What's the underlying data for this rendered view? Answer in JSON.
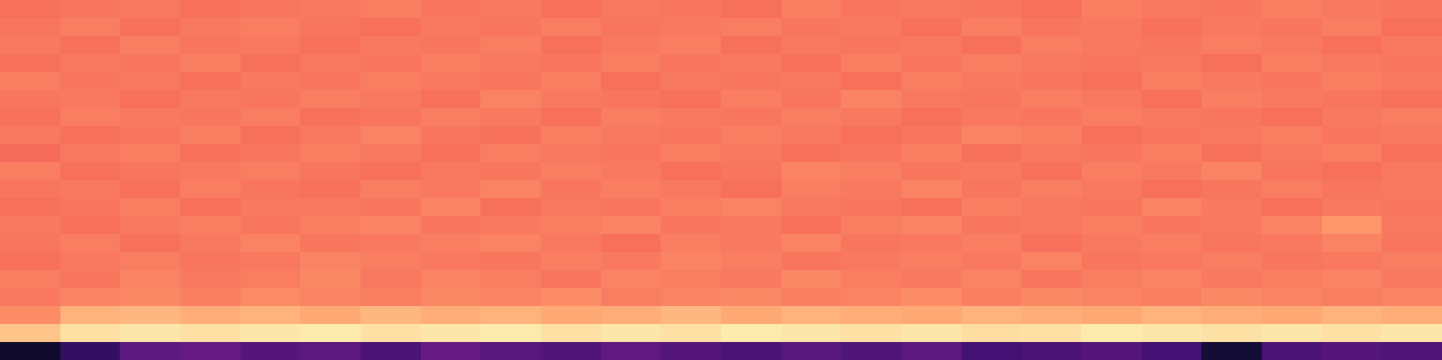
{
  "chart_data": {
    "type": "heatmap",
    "color": "magma",
    "tick_labels": false,
    "zlim": [
      0,
      100
    ],
    "cells": [
      [
        8,
        18,
        28,
        30,
        26,
        28,
        24,
        30,
        27,
        25,
        29,
        26,
        24,
        27,
        25,
        28,
        22,
        24,
        26,
        22,
        10,
        24,
        26,
        25
      ],
      [
        88,
        94,
        95,
        94,
        95,
        96,
        94,
        95,
        96,
        94,
        95,
        94,
        96,
        95,
        94,
        95,
        93,
        94,
        96,
        95,
        94,
        95,
        94,
        95
      ],
      [
        76,
        84,
        85,
        83,
        84,
        82,
        85,
        83,
        84,
        82,
        83,
        85,
        82,
        84,
        83,
        82,
        84,
        83,
        82,
        84,
        83,
        82,
        84,
        83
      ],
      [
        72,
        74,
        75,
        73,
        76,
        74,
        73,
        75,
        74,
        76,
        73,
        74,
        75,
        73,
        74,
        76,
        73,
        75,
        74,
        73,
        75,
        74,
        73,
        74
      ],
      [
        73,
        71,
        74,
        72,
        73,
        75,
        72,
        74,
        73,
        71,
        74,
        73,
        72,
        75,
        73,
        72,
        74,
        71,
        73,
        74,
        72,
        73,
        74,
        72
      ],
      [
        70,
        72,
        73,
        71,
        72,
        74,
        73,
        72,
        71,
        73,
        72,
        74,
        73,
        71,
        72,
        73,
        72,
        74,
        71,
        72,
        73,
        71,
        72,
        73
      ],
      [
        71,
        73,
        70,
        72,
        74,
        71,
        72,
        73,
        74,
        72,
        70,
        73,
        72,
        74,
        71,
        72,
        73,
        70,
        72,
        73,
        71,
        72,
        74,
        71
      ],
      [
        72,
        70,
        72,
        73,
        71,
        73,
        74,
        71,
        72,
        73,
        74,
        71,
        72,
        70,
        73,
        74,
        71,
        72,
        73,
        71,
        72,
        74,
        78,
        72
      ],
      [
        70,
        71,
        73,
        70,
        72,
        72,
        71,
        74,
        70,
        72,
        71,
        73,
        74,
        72,
        71,
        70,
        73,
        72,
        71,
        74,
        72,
        70,
        72,
        71
      ],
      [
        71,
        72,
        70,
        73,
        71,
        70,
        73,
        72,
        74,
        71,
        73,
        72,
        70,
        73,
        72,
        74,
        71,
        73,
        72,
        70,
        71,
        73,
        71,
        72
      ],
      [
        73,
        70,
        71,
        72,
        73,
        71,
        70,
        72,
        71,
        73,
        72,
        70,
        71,
        74,
        73,
        71,
        72,
        70,
        73,
        72,
        74,
        71,
        70,
        72
      ],
      [
        69,
        72,
        73,
        70,
        71,
        73,
        72,
        70,
        73,
        72,
        71,
        73,
        72,
        70,
        71,
        73,
        70,
        72,
        71,
        73,
        70,
        72,
        73,
        70
      ],
      [
        72,
        70,
        71,
        73,
        70,
        72,
        74,
        71,
        70,
        73,
        72,
        71,
        73,
        72,
        70,
        71,
        74,
        73,
        70,
        71,
        72,
        73,
        71,
        72
      ],
      [
        70,
        73,
        72,
        71,
        73,
        70,
        71,
        73,
        72,
        70,
        73,
        72,
        71,
        73,
        72,
        70,
        72,
        71,
        73,
        72,
        71,
        70,
        72,
        73
      ],
      [
        71,
        72,
        70,
        72,
        71,
        73,
        72,
        70,
        74,
        72,
        71,
        70,
        73,
        71,
        74,
        72,
        71,
        73,
        72,
        70,
        73,
        72,
        71,
        70
      ],
      [
        73,
        71,
        72,
        70,
        72,
        71,
        73,
        72,
        71,
        73,
        70,
        72,
        71,
        72,
        70,
        73,
        72,
        71,
        70,
        73,
        72,
        71,
        73,
        72
      ],
      [
        70,
        72,
        71,
        73,
        70,
        72,
        71,
        73,
        72,
        71,
        73,
        71,
        72,
        70,
        73,
        71,
        73,
        72,
        71,
        72,
        70,
        73,
        72,
        71
      ],
      [
        72,
        70,
        73,
        71,
        72,
        70,
        72,
        71,
        73,
        70,
        72,
        73,
        70,
        72,
        71,
        72,
        70,
        73,
        72,
        71,
        73,
        72,
        70,
        72
      ],
      [
        71,
        73,
        70,
        72,
        73,
        71,
        70,
        72,
        71,
        73,
        71,
        72,
        73,
        71,
        72,
        70,
        73,
        71,
        72,
        70,
        72,
        71,
        73,
        70
      ],
      [
        70,
        71,
        72,
        70,
        71,
        72,
        73,
        71,
        72,
        70,
        72,
        71,
        70,
        73,
        71,
        72,
        71,
        70,
        73,
        72,
        71,
        73,
        72,
        71
      ]
    ]
  }
}
